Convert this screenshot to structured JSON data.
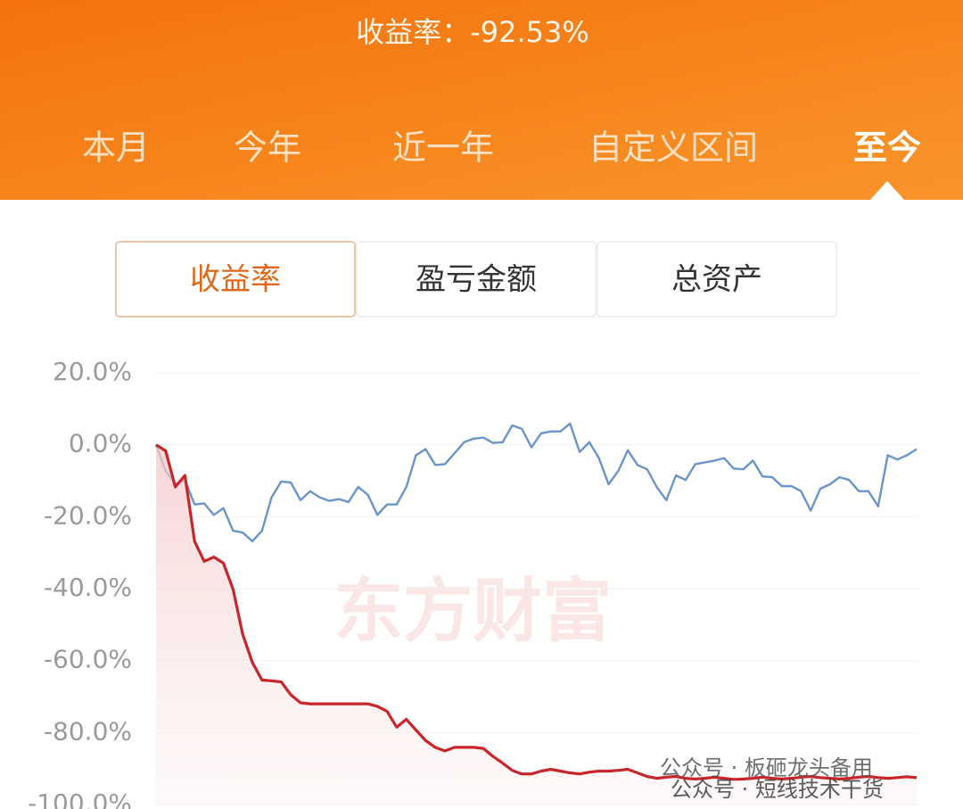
{
  "header": {
    "title": "收益率：-92.53%",
    "tabs": [
      "本月",
      "今年",
      "近一年",
      "自定义区间",
      "至今"
    ],
    "selected_tab": 4
  },
  "segments": {
    "items": [
      "收益率",
      "盈亏金额",
      "总资产"
    ],
    "selected": 0
  },
  "watermarks": [
    "东方财富",
    "公众号 · 板砸龙头备用",
    "公众号 · 短线技术干货"
  ],
  "chart_data": {
    "type": "line",
    "ylim": [
      -100,
      20
    ],
    "yticks": [
      {
        "value": 20,
        "label": "20.0%"
      },
      {
        "value": 0,
        "label": "0.0%"
      },
      {
        "value": -20,
        "label": "-20.0%"
      },
      {
        "value": -40,
        "label": "-40.0%"
      },
      {
        "value": -60,
        "label": "-60.0%"
      },
      {
        "value": -80,
        "label": "-80.0%"
      },
      {
        "value": -100,
        "label": "-100.0%"
      }
    ],
    "grid": true,
    "series": [
      {
        "color": "#6b95c9",
        "values": [
          0,
          -7.3,
          -11,
          -9.8,
          -16.6,
          -16.3,
          -19.5,
          -17.6,
          -23.9,
          -24.4,
          -26.8,
          -23.9,
          -14.6,
          -10.2,
          -10.5,
          -15.4,
          -12.9,
          -14.6,
          -15.6,
          -15.1,
          -15.9,
          -11.7,
          -13.9,
          -19.5,
          -16.6,
          -16.6,
          -11.7,
          -2.9,
          -1.2,
          -5.6,
          -5.4,
          -2.4,
          0.7,
          1.7,
          2,
          0.5,
          0.7,
          5.4,
          4.4,
          -0.7,
          3.2,
          3.7,
          3.7,
          5.9,
          -2,
          0.7,
          -3.7,
          -11,
          -7.3,
          -1.5,
          -5.6,
          -6.8,
          -11.7,
          -15.4,
          -8.5,
          -9.8,
          -5.4,
          -4.9,
          -4.4,
          -3.7,
          -6.6,
          -6.8,
          -4.4,
          -8.8,
          -9,
          -11.5,
          -11.5,
          -12.9,
          -18.3,
          -12.2,
          -11,
          -9,
          -9.8,
          -12.9,
          -12.9,
          -17.1,
          -2.9,
          -4.1,
          -2.9,
          -1.2
        ]
      },
      {
        "color": "#c9262b",
        "values": [
          0,
          -1.7,
          -11.7,
          -8.5,
          -26.8,
          -32.4,
          -31.2,
          -32.9,
          -40.2,
          -52.7,
          -60.5,
          -65.4,
          -65.6,
          -65.9,
          -69.5,
          -71.7,
          -72,
          -72,
          -72,
          -72,
          -72,
          -72,
          -72,
          -72.7,
          -74.1,
          -78.5,
          -76.3,
          -79.3,
          -82.2,
          -84.1,
          -85.1,
          -84.1,
          -84.1,
          -84.1,
          -84.4,
          -86.6,
          -88.5,
          -90.5,
          -91.5,
          -91.5,
          -90.7,
          -90.2,
          -90.7,
          -91.2,
          -91.5,
          -91,
          -90.7,
          -90.7,
          -90.5,
          -90.2,
          -91.2,
          -92.2,
          -92.7,
          -92.4,
          -92.2,
          -92.7,
          -92.9,
          -92.7,
          -92.4,
          -92.7,
          -93,
          -92.9,
          -92.7,
          -92.4,
          -92.7,
          -92.9,
          -92.7,
          -92.4,
          -92.2,
          -92.5,
          -92.7,
          -92.9,
          -92.7,
          -92.4,
          -92.2,
          -92.5,
          -92.7,
          -92.5,
          -92.3,
          -92.5
        ]
      }
    ]
  }
}
